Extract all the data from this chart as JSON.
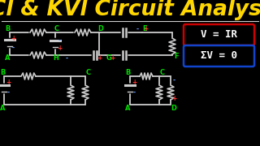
{
  "bg_color": "#000000",
  "title_text": "KCl & KVl Circuit Analysis",
  "title_color": "#FFD700",
  "title_fontsize": 19,
  "title_fontstyle": "bold",
  "divider_color": "#CCCCCC",
  "box1_text": "V = IR",
  "box1_color": "#CC0000",
  "box1_text_color": "#FFFFFF",
  "box2_text": "ΣV = 0",
  "box2_color": "#1144CC",
  "box2_text_color": "#FFFFFF",
  "circuit_color": "#CCCCCC",
  "node_color_green": "#00DD00",
  "node_color_red": "#FF3333",
  "node_color_blue": "#6699FF"
}
